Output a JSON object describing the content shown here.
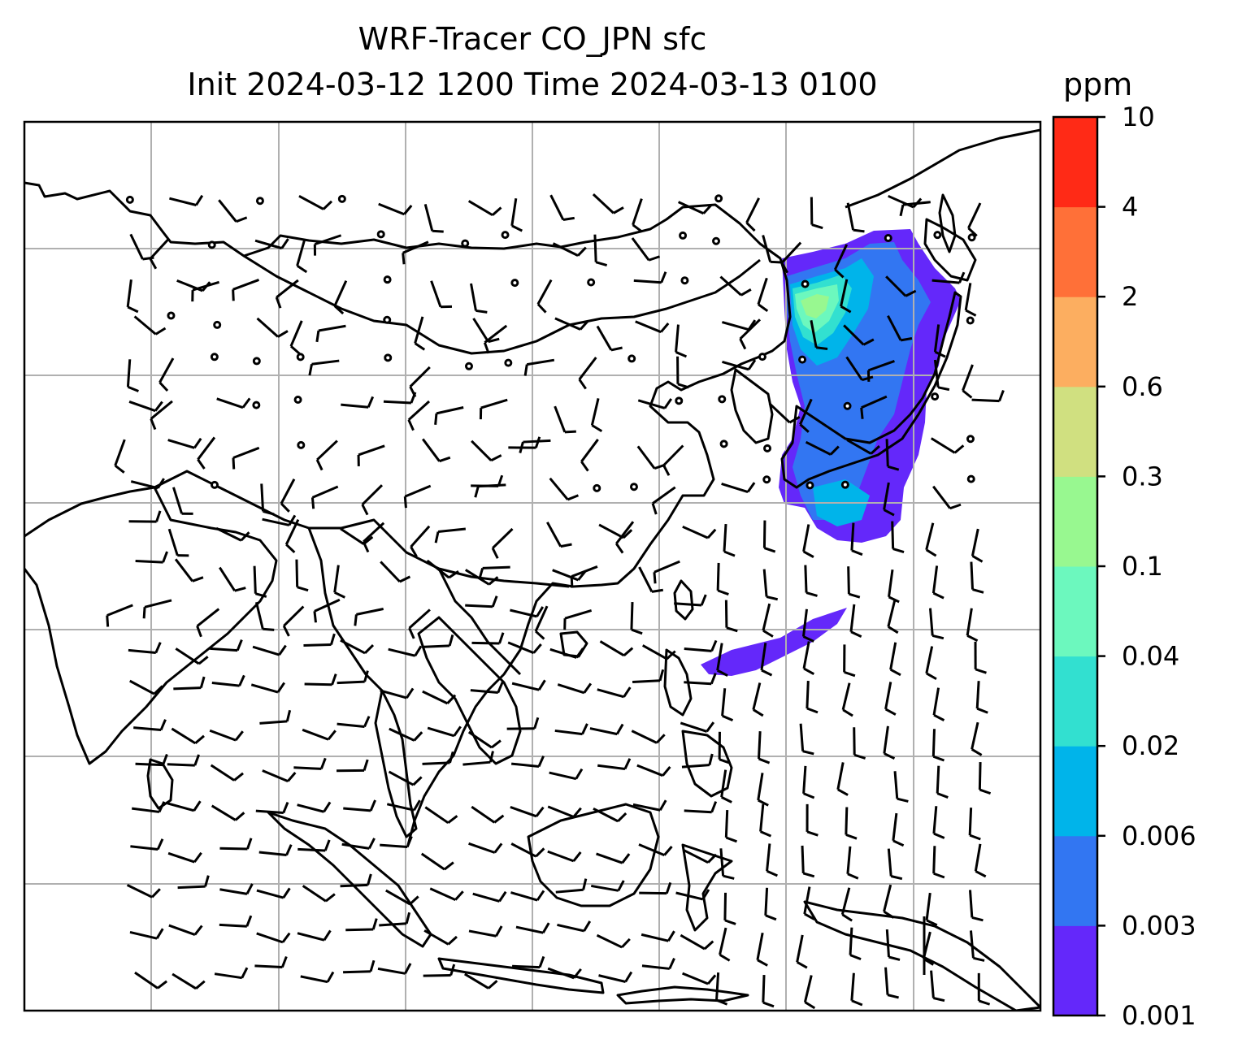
{
  "title": {
    "line1": "WRF-Tracer CO_JPN sfc",
    "line2": "Init 2024-03-12 1200 Time 2024-03-13 0100"
  },
  "colorbar": {
    "unit": "ppm",
    "tick_labels": [
      "0.001",
      "0.003",
      "0.006",
      "0.02",
      "0.04",
      "0.1",
      "0.3",
      "0.6",
      "2",
      "4",
      "10"
    ],
    "colors": [
      "#6428fa",
      "#3276f2",
      "#00b4ea",
      "#32e0d0",
      "#6cf8be",
      "#98f890",
      "#d0e080",
      "#fcae60",
      "#ff7038",
      "#ff2a16"
    ]
  },
  "map": {
    "gridlines": true,
    "wind_barbs": true,
    "calm_markers": true,
    "tracer_plume_levels": [
      "#6428fa",
      "#3276f2",
      "#00b4ea",
      "#32e0d0",
      "#6cf8be",
      "#98f890"
    ]
  }
}
